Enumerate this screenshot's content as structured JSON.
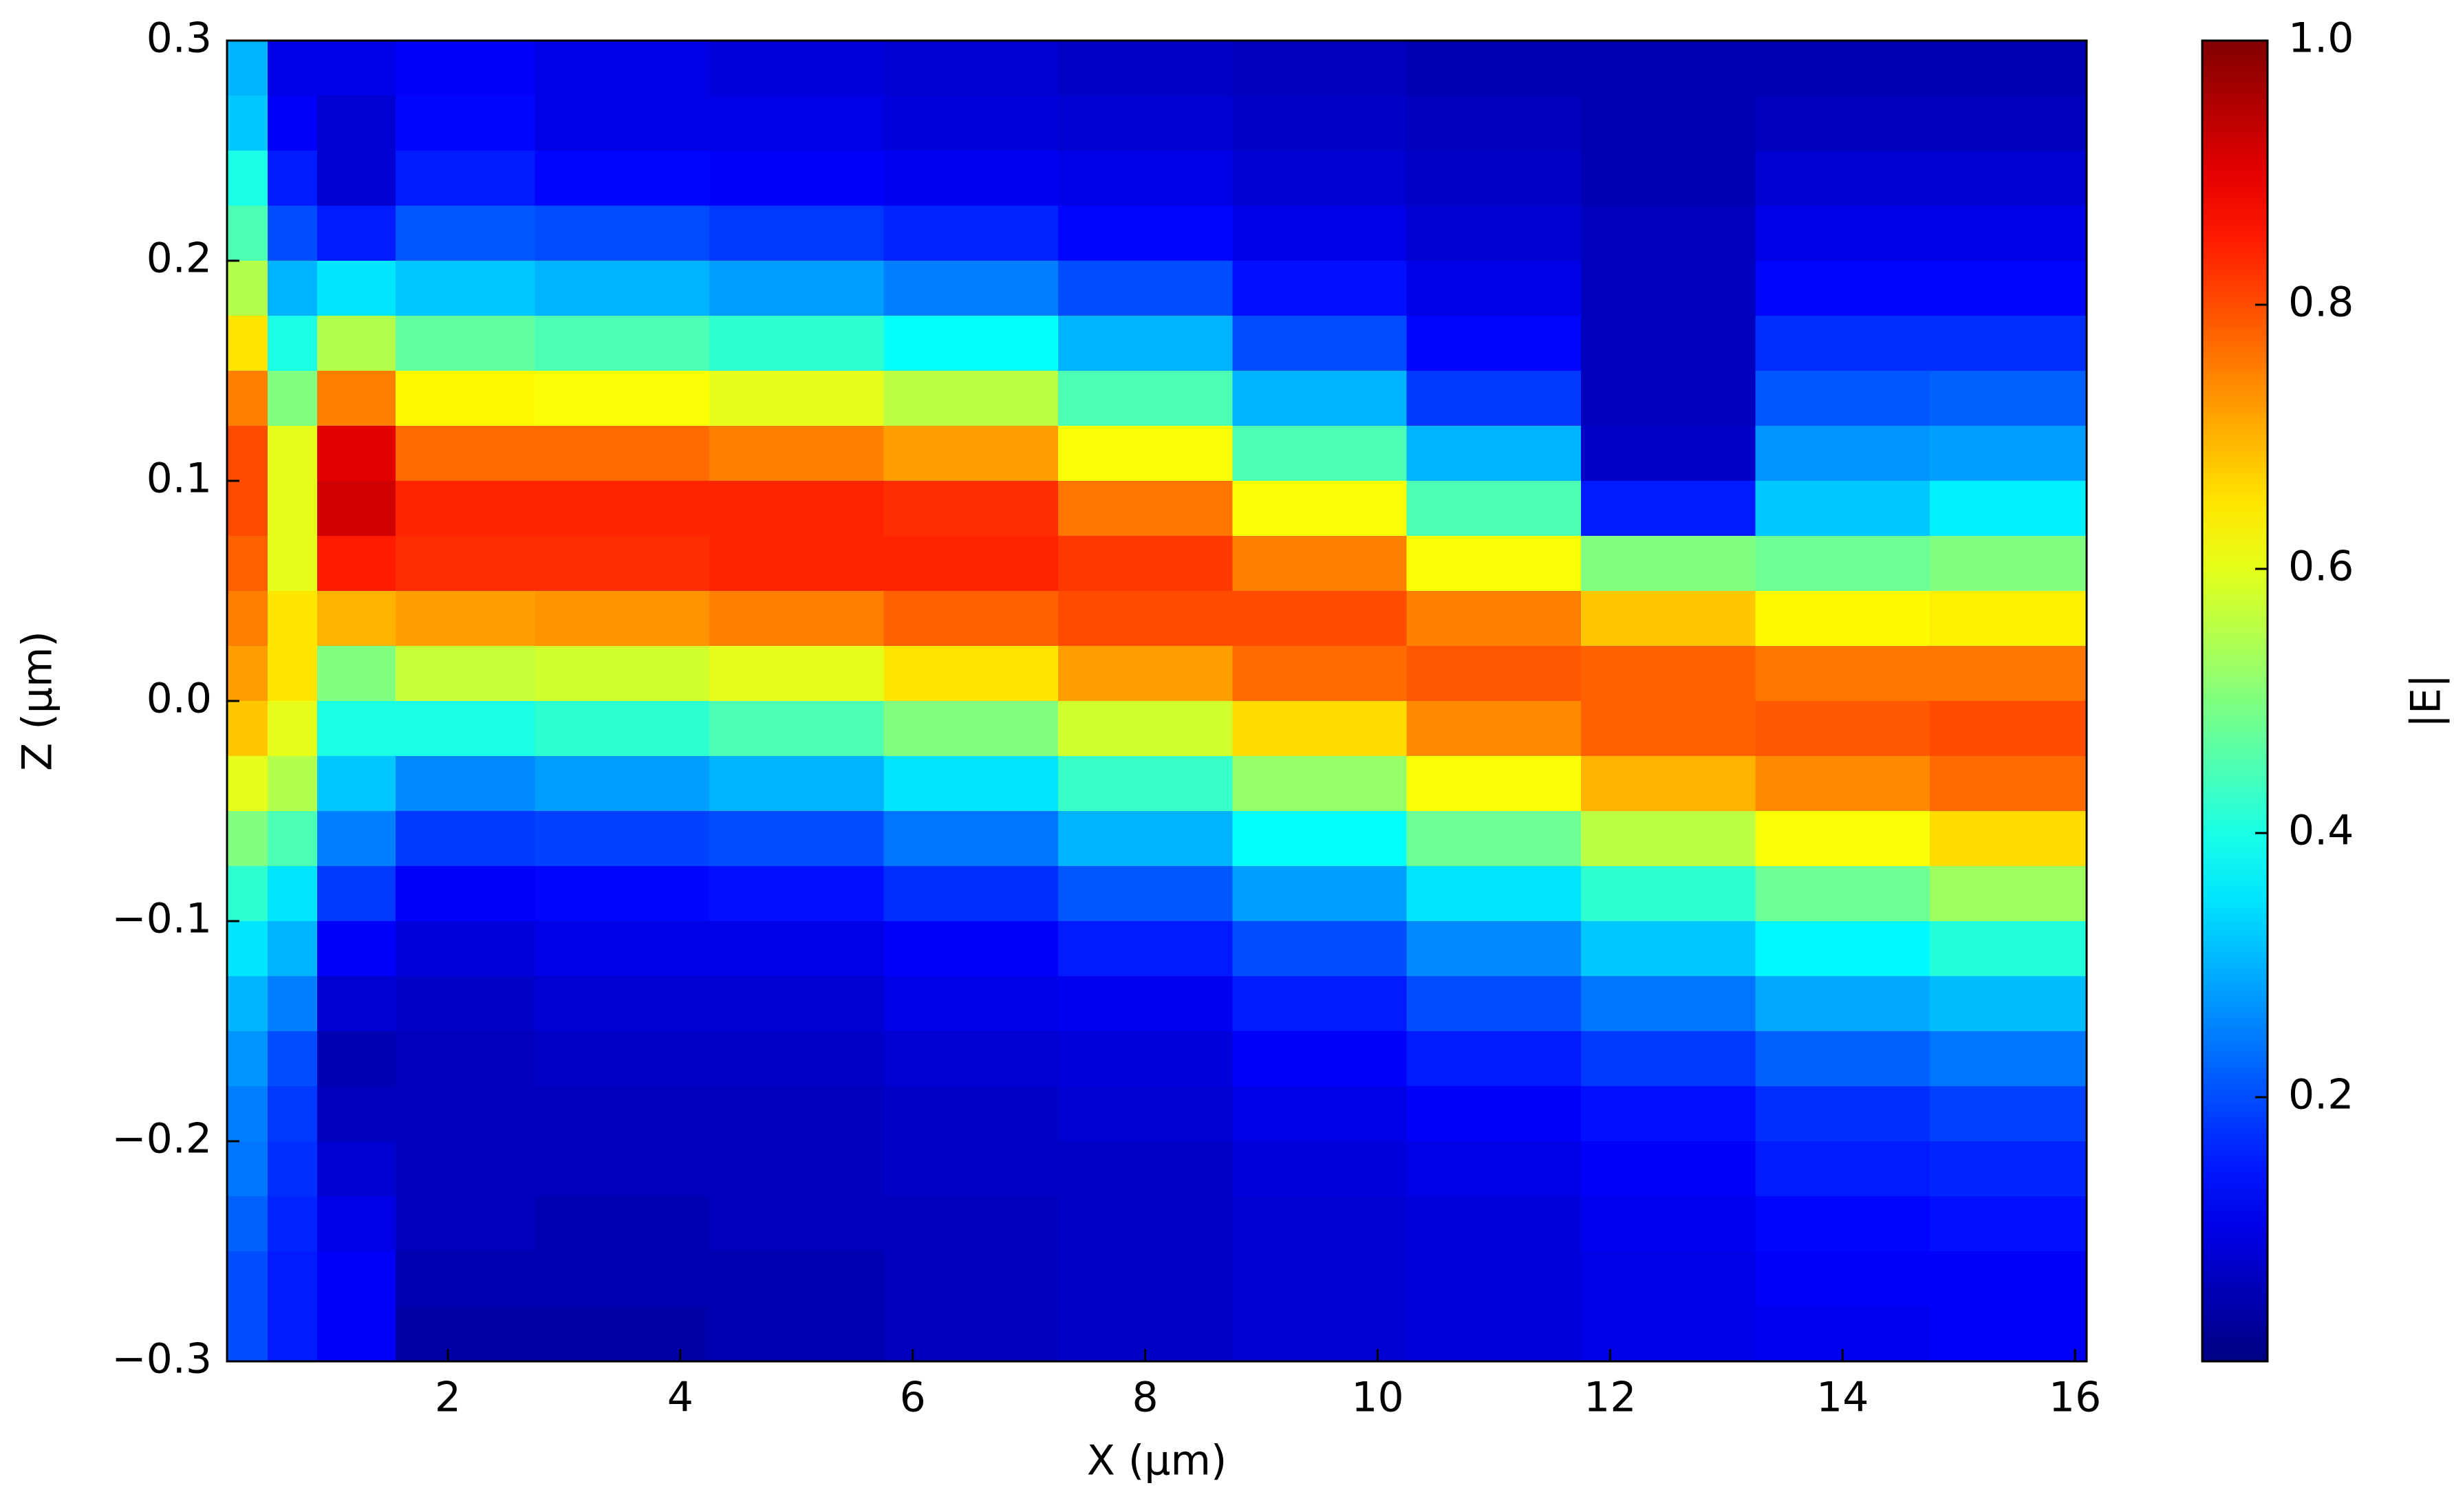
{
  "chart_data": {
    "type": "heatmap",
    "xlabel": "X (μm)",
    "ylabel": "Z (μm)",
    "colorbar_label": "|E|",
    "colormap": "jet",
    "xlim": [
      0.1,
      16.1
    ],
    "ylim": [
      -0.3,
      0.3
    ],
    "clim": [
      0,
      1
    ],
    "xticks": [
      2,
      4,
      6,
      8,
      10,
      12,
      14,
      16
    ],
    "yticks": [
      {
        "value": -0.3,
        "label": "−0.3"
      },
      {
        "value": -0.2,
        "label": "−0.2"
      },
      {
        "value": -0.1,
        "label": "−0.1"
      },
      {
        "value": 0,
        "label": "0.0"
      },
      0.1,
      0.2,
      0.3
    ],
    "cticks": [
      0.2,
      0.4,
      0.6,
      0.8,
      {
        "value": 1,
        "label": "1.0"
      }
    ],
    "x": [
      0.25,
      0.65,
      1.1,
      2,
      3.5,
      5,
      6.5,
      8,
      9.5,
      11,
      12.5,
      14,
      15.5
    ],
    "y": [
      0.2875,
      0.2625,
      0.2375,
      0.2125,
      0.1875,
      0.1625,
      0.1375,
      0.1125,
      0.0875,
      0.0625,
      0.0375,
      0.0125,
      -0.0125,
      -0.0375,
      -0.0625,
      -0.0875,
      -0.1125,
      -0.1375,
      -0.1625,
      -0.1875,
      -0.2125,
      -0.2375,
      -0.2625,
      -0.2875
    ],
    "values": [
      [
        0.3,
        0.1,
        0.1,
        0.12,
        0.1,
        0.09,
        0.08,
        0.07,
        0.06,
        0.05,
        0.05,
        0.05,
        0.05
      ],
      [
        0.32,
        0.12,
        0.08,
        0.13,
        0.1,
        0.1,
        0.09,
        0.08,
        0.07,
        0.06,
        0.05,
        0.06,
        0.06
      ],
      [
        0.4,
        0.15,
        0.08,
        0.15,
        0.13,
        0.12,
        0.11,
        0.1,
        0.08,
        0.07,
        0.05,
        0.08,
        0.08
      ],
      [
        0.45,
        0.2,
        0.15,
        0.21,
        0.2,
        0.18,
        0.16,
        0.13,
        0.1,
        0.08,
        0.06,
        0.1,
        0.1
      ],
      [
        0.55,
        0.3,
        0.35,
        0.32,
        0.3,
        0.28,
        0.25,
        0.2,
        0.14,
        0.1,
        0.06,
        0.13,
        0.13
      ],
      [
        0.65,
        0.4,
        0.55,
        0.47,
        0.45,
        0.42,
        0.38,
        0.3,
        0.2,
        0.13,
        0.06,
        0.17,
        0.17
      ],
      [
        0.75,
        0.5,
        0.75,
        0.63,
        0.62,
        0.6,
        0.56,
        0.45,
        0.3,
        0.18,
        0.06,
        0.21,
        0.22
      ],
      [
        0.8,
        0.6,
        0.9,
        0.77,
        0.77,
        0.75,
        0.72,
        0.62,
        0.45,
        0.3,
        0.07,
        0.27,
        0.28
      ],
      [
        0.8,
        0.6,
        0.92,
        0.84,
        0.84,
        0.84,
        0.83,
        0.76,
        0.62,
        0.45,
        0.15,
        0.32,
        0.36
      ],
      [
        0.78,
        0.6,
        0.85,
        0.83,
        0.83,
        0.84,
        0.84,
        0.82,
        0.75,
        0.62,
        0.5,
        0.48,
        0.5
      ],
      [
        0.75,
        0.65,
        0.7,
        0.72,
        0.73,
        0.75,
        0.78,
        0.8,
        0.8,
        0.75,
        0.68,
        0.63,
        0.64
      ],
      [
        0.72,
        0.65,
        0.5,
        0.57,
        0.58,
        0.6,
        0.65,
        0.72,
        0.77,
        0.79,
        0.78,
        0.76,
        0.76
      ],
      [
        0.68,
        0.6,
        0.4,
        0.4,
        0.42,
        0.45,
        0.5,
        0.58,
        0.66,
        0.74,
        0.78,
        0.79,
        0.8
      ],
      [
        0.6,
        0.55,
        0.32,
        0.26,
        0.28,
        0.3,
        0.35,
        0.43,
        0.52,
        0.62,
        0.7,
        0.74,
        0.77
      ],
      [
        0.5,
        0.45,
        0.25,
        0.18,
        0.19,
        0.2,
        0.24,
        0.3,
        0.38,
        0.48,
        0.56,
        0.62,
        0.66
      ],
      [
        0.42,
        0.35,
        0.18,
        0.12,
        0.13,
        0.14,
        0.17,
        0.21,
        0.28,
        0.35,
        0.42,
        0.48,
        0.53
      ],
      [
        0.35,
        0.3,
        0.12,
        0.09,
        0.1,
        0.1,
        0.12,
        0.15,
        0.2,
        0.26,
        0.32,
        0.37,
        0.41
      ],
      [
        0.3,
        0.25,
        0.08,
        0.07,
        0.08,
        0.08,
        0.1,
        0.11,
        0.15,
        0.2,
        0.24,
        0.29,
        0.31
      ],
      [
        0.27,
        0.2,
        0.05,
        0.06,
        0.07,
        0.07,
        0.08,
        0.09,
        0.12,
        0.15,
        0.18,
        0.22,
        0.24
      ],
      [
        0.25,
        0.18,
        0.06,
        0.06,
        0.06,
        0.06,
        0.07,
        0.08,
        0.1,
        0.12,
        0.14,
        0.17,
        0.19
      ],
      [
        0.24,
        0.17,
        0.08,
        0.06,
        0.06,
        0.06,
        0.07,
        0.07,
        0.09,
        0.1,
        0.12,
        0.15,
        0.16
      ],
      [
        0.22,
        0.16,
        0.1,
        0.06,
        0.05,
        0.06,
        0.06,
        0.07,
        0.08,
        0.09,
        0.11,
        0.13,
        0.14
      ],
      [
        0.2,
        0.15,
        0.12,
        0.05,
        0.05,
        0.05,
        0.06,
        0.07,
        0.08,
        0.09,
        0.1,
        0.12,
        0.12
      ],
      [
        0.2,
        0.15,
        0.12,
        0.04,
        0.04,
        0.05,
        0.06,
        0.07,
        0.08,
        0.09,
        0.1,
        0.11,
        0.12
      ]
    ]
  }
}
